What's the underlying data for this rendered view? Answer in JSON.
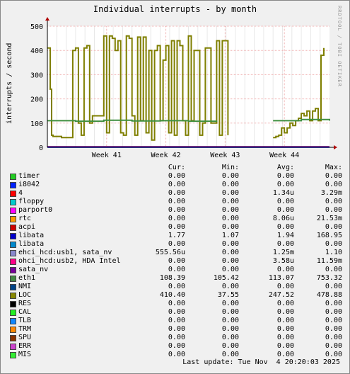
{
  "title": "Individual interrupts - by month",
  "watermark": "RRDTOOL / TOBI OETIKER",
  "chart_data": {
    "type": "line",
    "title": "Individual interrupts - by month",
    "ylabel": "interrupts / second",
    "ylim": [
      0,
      500
    ],
    "yticks": [
      0,
      100,
      200,
      300,
      400,
      500
    ],
    "x_labels": [
      "Week 41",
      "Week 42",
      "Week 43",
      "Week 44"
    ],
    "grid": true,
    "series": [
      {
        "name": "LOC",
        "color": "#7f7f00",
        "x": [
          0,
          0.01,
          0.015,
          0.02,
          0.03,
          0.05,
          0.09,
          0.1,
          0.11,
          0.12,
          0.13,
          0.14,
          0.15,
          0.16,
          0.2,
          0.21,
          0.22,
          0.23,
          0.24,
          0.25,
          0.26,
          0.27,
          0.28,
          0.29,
          0.3,
          0.31,
          0.32,
          0.33,
          0.34,
          0.35,
          0.36,
          0.37,
          0.38,
          0.39,
          0.4,
          0.41,
          0.42,
          0.43,
          0.44,
          0.45,
          0.46,
          0.47,
          0.48,
          0.49,
          0.5,
          0.51,
          0.52,
          0.53,
          0.54,
          0.55,
          0.56,
          0.57,
          0.58,
          0.59,
          0.6,
          0.61,
          0.62,
          0.63,
          0.64,
          0.65,
          0.66,
          0.67,
          0.68,
          0.69,
          0.7,
          0.71,
          0.72,
          0.73,
          0.74,
          0.75,
          0.76,
          0.77,
          0.78,
          0.79,
          0.8,
          0.81,
          0.82,
          0.83,
          0.84,
          0.85,
          0.86,
          0.87,
          0.88,
          0.89,
          0.9,
          0.91,
          0.92,
          0.93,
          0.94,
          0.95,
          0.96,
          0.97,
          0.98,
          0.99,
          1.0
        ],
        "values": [
          410,
          240,
          50,
          45,
          45,
          40,
          400,
          410,
          100,
          50,
          410,
          420,
          100,
          130,
          460,
          60,
          460,
          450,
          400,
          440,
          60,
          50,
          460,
          450,
          130,
          50,
          455,
          110,
          455,
          60,
          400,
          30,
          400,
          420,
          110,
          360,
          420,
          60,
          440,
          50,
          440,
          420,
          110,
          50,
          460,
          110,
          400,
          400,
          50,
          100,
          410,
          410,
          100,
          100,
          440,
          50,
          440,
          440,
          50,
          null,
          null,
          null,
          null,
          null,
          null,
          null,
          null,
          null,
          null,
          null,
          null,
          null,
          null,
          null,
          40,
          45,
          50,
          80,
          60,
          80,
          100,
          90,
          110,
          120,
          140,
          130,
          150,
          110,
          150,
          160,
          110,
          380,
          410,
          null,
          null
        ]
      },
      {
        "name": "eth1",
        "color": "#408f40",
        "x": [
          0,
          0.1,
          0.2,
          0.3,
          0.4,
          0.5,
          0.6,
          0.62,
          0.8,
          0.9,
          1.0
        ],
        "values": [
          110,
          108,
          112,
          109,
          110,
          108,
          110,
          null,
          110,
          115,
          110
        ]
      },
      {
        "name": "libata",
        "color": "#b00000",
        "x": [
          0,
          1
        ],
        "values": [
          2,
          2
        ]
      },
      {
        "name": "i8042",
        "color": "#0000ff",
        "x": [
          0,
          1
        ],
        "values": [
          1,
          1
        ]
      }
    ]
  },
  "legend": {
    "headers": [
      "Cur:",
      "Min:",
      "Avg:",
      "Max:"
    ],
    "rows": [
      {
        "name": "timer",
        "color": "#22cc22",
        "cur": "0.00",
        "min": "0.00",
        "avg": "0.00",
        "max": "0.00"
      },
      {
        "name": "i8042",
        "color": "#0022ff",
        "cur": "0.00",
        "min": "0.00",
        "avg": "0.00",
        "max": "0.00"
      },
      {
        "name": "4",
        "color": "#ff0000",
        "cur": "0.00",
        "min": "0.00",
        "avg": "1.34u",
        "max": "3.29m"
      },
      {
        "name": "floppy",
        "color": "#00cccc",
        "cur": "0.00",
        "min": "0.00",
        "avg": "0.00",
        "max": "0.00"
      },
      {
        "name": "parport0",
        "color": "#ff00ff",
        "cur": "0.00",
        "min": "0.00",
        "avg": "0.00",
        "max": "0.00"
      },
      {
        "name": "rtc",
        "color": "#ff9900",
        "cur": "0.00",
        "min": "0.00",
        "avg": "8.06u",
        "max": "21.53m"
      },
      {
        "name": "acpi",
        "color": "#cc0000",
        "cur": "0.00",
        "min": "0.00",
        "avg": "0.00",
        "max": "0.00"
      },
      {
        "name": "libata",
        "color": "#0000cc",
        "cur": "1.77",
        "min": "1.07",
        "avg": "1.94",
        "max": "168.95"
      },
      {
        "name": "libata",
        "color": "#0088cc",
        "cur": "0.00",
        "min": "0.00",
        "avg": "0.00",
        "max": "0.00"
      },
      {
        "name": "ehci_hcd:usb1, sata_nv",
        "color": "#8888cc",
        "cur": "555.56u",
        "min": "0.00",
        "avg": "1.25m",
        "max": "1.10"
      },
      {
        "name": "ohci_hcd:usb2, HDA Intel",
        "color": "#ff0088",
        "cur": "0.00",
        "min": "0.00",
        "avg": "3.58u",
        "max": "11.59m"
      },
      {
        "name": "sata_nv",
        "color": "#770099",
        "cur": "0.00",
        "min": "0.00",
        "avg": "0.00",
        "max": "0.00"
      },
      {
        "name": "eth1",
        "color": "#448844",
        "cur": "108.39",
        "min": "105.42",
        "avg": "113.07",
        "max": "753.32"
      },
      {
        "name": "NMI",
        "color": "#004488",
        "cur": "0.00",
        "min": "0.00",
        "avg": "0.00",
        "max": "0.00"
      },
      {
        "name": "LOC",
        "color": "#888800",
        "cur": "410.40",
        "min": "37.55",
        "avg": "247.52",
        "max": "478.88"
      },
      {
        "name": "RES",
        "color": "#000000",
        "cur": "0.00",
        "min": "0.00",
        "avg": "0.00",
        "max": "0.00"
      },
      {
        "name": "CAL",
        "color": "#22ee22",
        "cur": "0.00",
        "min": "0.00",
        "avg": "0.00",
        "max": "0.00"
      },
      {
        "name": "TLB",
        "color": "#1188ff",
        "cur": "0.00",
        "min": "0.00",
        "avg": "0.00",
        "max": "0.00"
      },
      {
        "name": "TRM",
        "color": "#ff8800",
        "cur": "0.00",
        "min": "0.00",
        "avg": "0.00",
        "max": "0.00"
      },
      {
        "name": "SPU",
        "color": "#883300",
        "cur": "0.00",
        "min": "0.00",
        "avg": "0.00",
        "max": "0.00"
      },
      {
        "name": "ERR",
        "color": "#cc44cc",
        "cur": "0.00",
        "min": "0.00",
        "avg": "0.00",
        "max": "0.00"
      },
      {
        "name": "MIS",
        "color": "#33ee33",
        "cur": "0.00",
        "min": "0.00",
        "avg": "0.00",
        "max": "0.00"
      }
    ]
  },
  "footer": "Last update: Tue Nov  4 20:20:03 2025"
}
